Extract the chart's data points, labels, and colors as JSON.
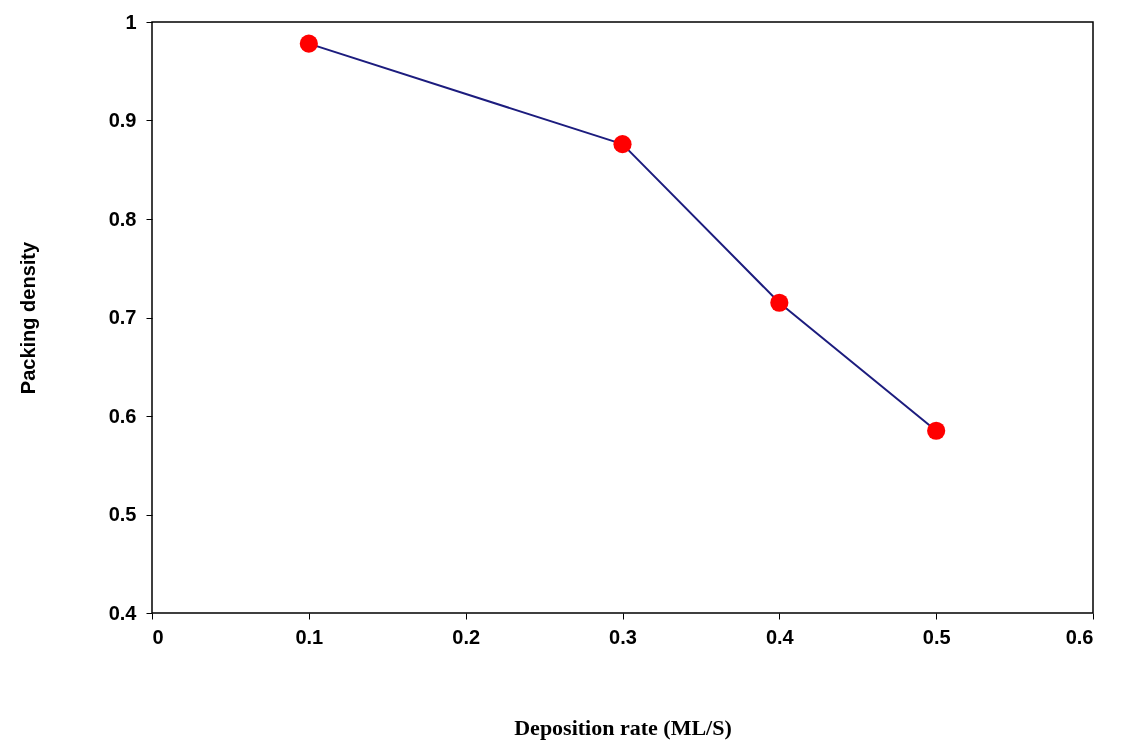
{
  "chart_data": {
    "type": "line",
    "xlabel": "Deposition rate (ML/S)",
    "ylabel": "Packing density",
    "x": [
      0.1,
      0.3,
      0.4,
      0.5
    ],
    "series": [
      {
        "color": "#1c1c7e",
        "colors": [
          "#ff0000",
          "#ff0000",
          "#ff0000",
          "#ff0000"
        ],
        "values": [
          0.978,
          0.876,
          0.715,
          0.585
        ]
      }
    ],
    "xlim": [
      0,
      0.6
    ],
    "xticks": [
      0,
      0.1,
      0.2,
      0.3,
      0.4,
      0.5,
      0.6
    ],
    "ylim": [
      0.4,
      1
    ],
    "yticks": [
      0.4,
      0.5,
      0.6,
      0.7,
      0.8,
      0.9,
      1
    ],
    "marker": "circle",
    "line_style": "solid",
    "grid": false
  }
}
